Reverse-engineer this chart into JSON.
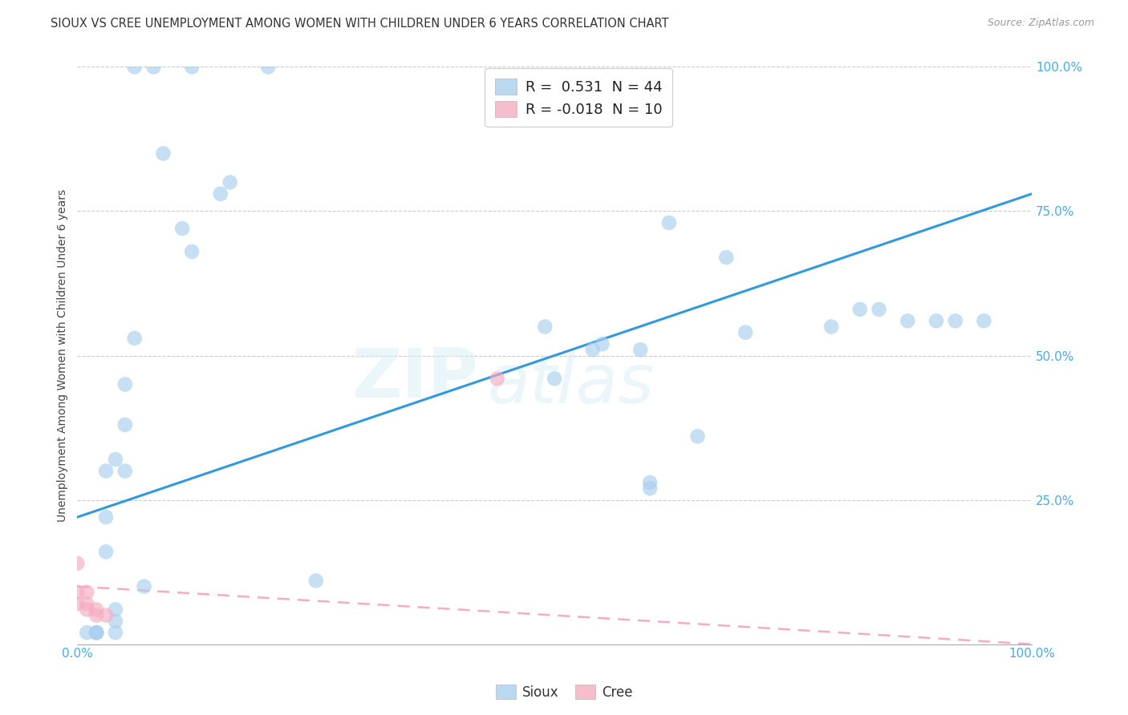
{
  "title": "SIOUX VS CREE UNEMPLOYMENT AMONG WOMEN WITH CHILDREN UNDER 6 YEARS CORRELATION CHART",
  "source": "Source: ZipAtlas.com",
  "ylabel": "Unemployment Among Women with Children Under 6 years",
  "watermark": "ZIPatlas",
  "legend_label_sioux": "R =  0.531  N = 44",
  "legend_label_cree": "R = -0.018  N = 10",
  "sioux_color": "#aacfee",
  "cree_color": "#f4adc0",
  "trendline_sioux_color": "#3399dd",
  "trendline_cree_color": "#f4adc0",
  "background_color": "#ffffff",
  "sioux_x": [
    0.2,
    0.06,
    0.12,
    0.08,
    0.09,
    0.11,
    0.12,
    0.06,
    0.05,
    0.05,
    0.05,
    0.04,
    0.03,
    0.03,
    0.03,
    0.04,
    0.04,
    0.04,
    0.54,
    0.55,
    0.62,
    0.68,
    0.7,
    0.79,
    0.82,
    0.84,
    0.87,
    0.9,
    0.92,
    0.95,
    0.59,
    0.49,
    0.5,
    0.6,
    0.6,
    0.65,
    0.02,
    0.02,
    0.02,
    0.01,
    0.07,
    0.25,
    0.15,
    0.16
  ],
  "sioux_y": [
    1.0,
    1.0,
    1.0,
    1.0,
    0.85,
    0.72,
    0.68,
    0.53,
    0.45,
    0.38,
    0.3,
    0.32,
    0.3,
    0.22,
    0.16,
    0.06,
    0.04,
    0.02,
    0.51,
    0.52,
    0.73,
    0.67,
    0.54,
    0.55,
    0.58,
    0.58,
    0.56,
    0.56,
    0.56,
    0.56,
    0.51,
    0.55,
    0.46,
    0.28,
    0.27,
    0.36,
    0.02,
    0.02,
    0.02,
    0.02,
    0.1,
    0.11,
    0.78,
    0.8
  ],
  "cree_x": [
    0.0,
    0.0,
    0.0,
    0.01,
    0.01,
    0.01,
    0.02,
    0.02,
    0.03,
    0.44
  ],
  "cree_y": [
    0.14,
    0.09,
    0.07,
    0.09,
    0.07,
    0.06,
    0.06,
    0.05,
    0.05,
    0.46
  ],
  "trendline_sioux_x0": 0.0,
  "trendline_sioux_y0": 0.22,
  "trendline_sioux_x1": 1.0,
  "trendline_sioux_y1": 0.78,
  "trendline_cree_x0": 0.0,
  "trendline_cree_y0": 0.1,
  "trendline_cree_x1": 1.0,
  "trendline_cree_y1": 0.0,
  "xlim": [
    0.0,
    1.0
  ],
  "ylim": [
    0.0,
    1.0
  ],
  "ytick_labels": [
    "25.0%",
    "50.0%",
    "75.0%",
    "100.0%"
  ],
  "ytick_values": [
    0.25,
    0.5,
    0.75,
    1.0
  ],
  "xtick_labels": [
    "0.0%",
    "100.0%"
  ],
  "xtick_values": [
    0.0,
    1.0
  ],
  "title_fontsize": 10.5,
  "source_fontsize": 9,
  "tick_fontsize": 11,
  "ylabel_fontsize": 10,
  "marker_size": 180
}
